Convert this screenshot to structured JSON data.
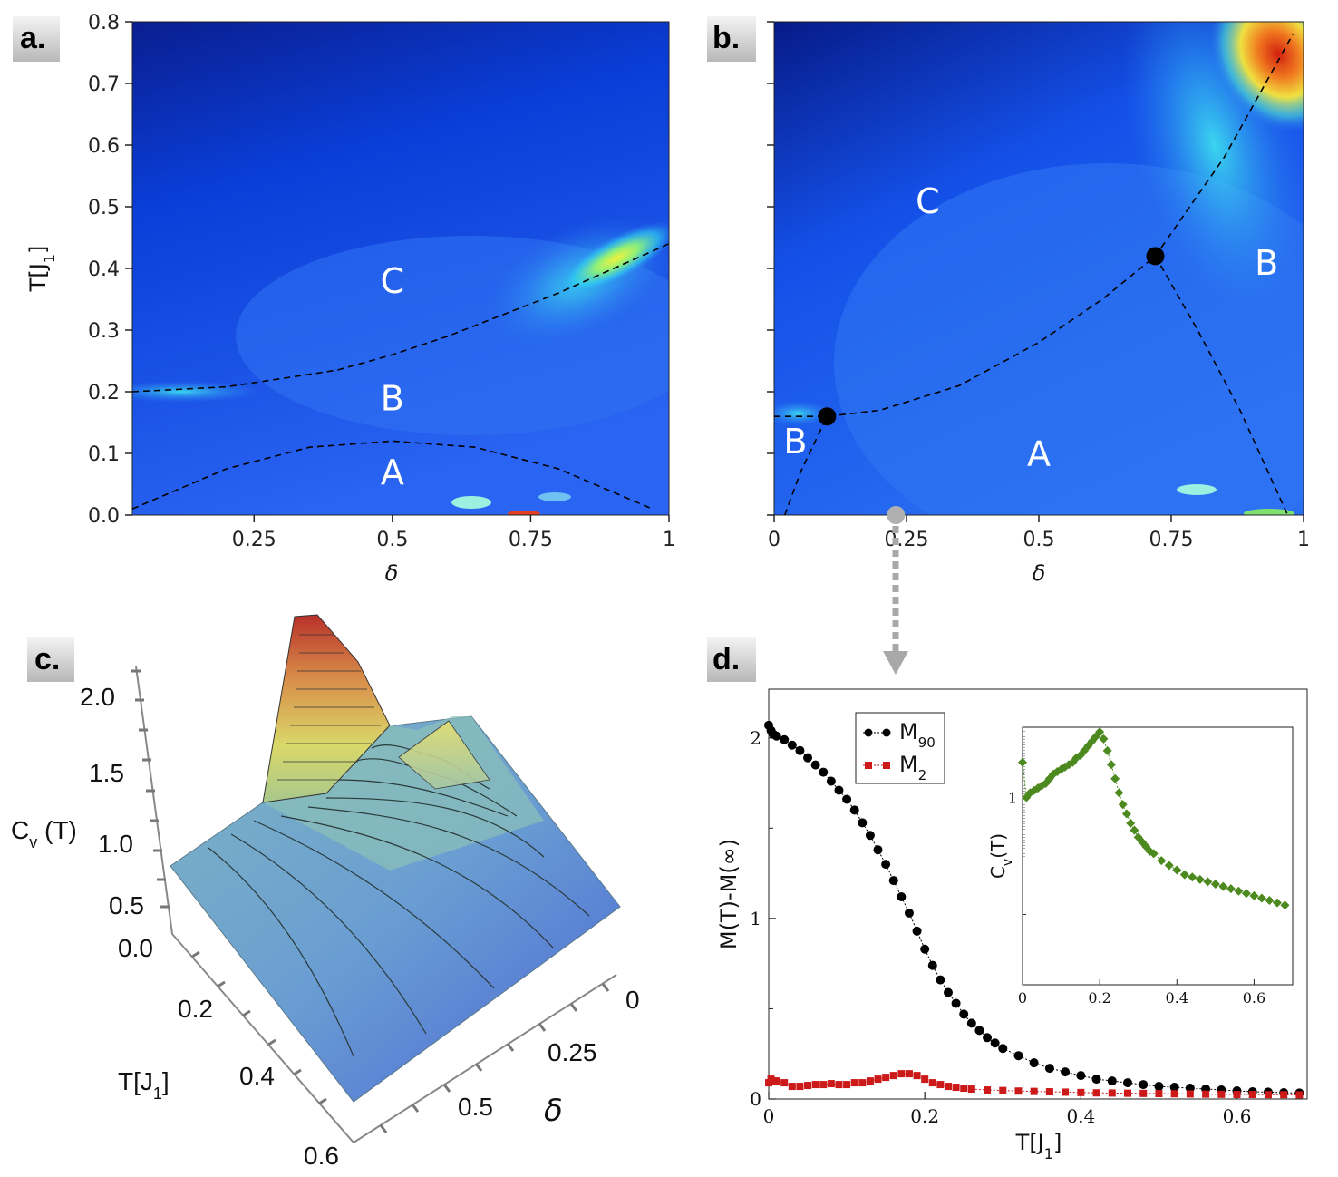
{
  "panels": {
    "a": {
      "label": "a."
    },
    "b": {
      "label": "b."
    },
    "c": {
      "label": "c."
    },
    "d": {
      "label": "d."
    }
  },
  "chart_data": [
    {
      "panel": "a",
      "type": "heatmap",
      "xlabel": "δ",
      "ylabel": "T[J1]",
      "xlim": [
        0.03,
        1.0
      ],
      "ylim": [
        0.0,
        0.8
      ],
      "xticks": [
        0.25,
        0.5,
        0.75,
        1.0
      ],
      "xtick_labels": [
        "0.25",
        "0.5",
        "0.75",
        "1"
      ],
      "yticks": [
        0.0,
        0.1,
        0.2,
        0.3,
        0.4,
        0.5,
        0.6,
        0.7,
        0.8
      ],
      "ytick_labels": [
        "0.0",
        "0.1",
        "0.2",
        "0.3",
        "0.4",
        "0.5",
        "0.6",
        "0.7",
        "0.8"
      ],
      "regions": [
        {
          "label": "C",
          "x": 0.5,
          "y": 0.36
        },
        {
          "label": "B",
          "x": 0.5,
          "y": 0.17
        },
        {
          "label": "A",
          "x": 0.5,
          "y": 0.05
        }
      ],
      "boundaries": [
        {
          "name": "C-B",
          "x": [
            0.03,
            0.2,
            0.4,
            0.5,
            0.6,
            0.8,
            1.0
          ],
          "y": [
            0.2,
            0.208,
            0.235,
            0.26,
            0.29,
            0.36,
            0.44
          ]
        },
        {
          "name": "B-A",
          "x": [
            0.03,
            0.2,
            0.35,
            0.5,
            0.65,
            0.8,
            0.97
          ],
          "y": [
            0.01,
            0.075,
            0.11,
            0.12,
            0.11,
            0.075,
            0.01
          ]
        }
      ]
    },
    {
      "panel": "b",
      "type": "heatmap",
      "xlabel": "δ",
      "ylabel": "",
      "xlim": [
        0.0,
        1.0
      ],
      "ylim": [
        0.0,
        0.8
      ],
      "xticks": [
        0.0,
        0.25,
        0.5,
        0.75,
        1.0
      ],
      "xtick_labels": [
        "0",
        "0.25",
        "0.5",
        "0.75",
        "1"
      ],
      "yticks": [
        0.0,
        0.1,
        0.2,
        0.3,
        0.4,
        0.5,
        0.6,
        0.7,
        0.8
      ],
      "regions": [
        {
          "label": "C",
          "x": 0.29,
          "y": 0.49
        },
        {
          "label": "B",
          "x": 0.93,
          "y": 0.39
        },
        {
          "label": "B",
          "x": 0.04,
          "y": 0.1
        },
        {
          "label": "A",
          "x": 0.5,
          "y": 0.08
        }
      ],
      "boundaries": [
        {
          "name": "upper",
          "x": [
            0.0,
            0.1,
            0.2,
            0.35,
            0.5,
            0.62,
            0.72,
            0.85,
            0.98
          ],
          "y": [
            0.16,
            0.16,
            0.17,
            0.21,
            0.28,
            0.35,
            0.42,
            0.58,
            0.78
          ]
        },
        {
          "name": "left",
          "x": [
            0.02,
            0.05,
            0.1
          ],
          "y": [
            0.0,
            0.07,
            0.16
          ]
        },
        {
          "name": "right",
          "x": [
            0.72,
            0.8,
            0.88,
            0.97
          ],
          "y": [
            0.42,
            0.3,
            0.17,
            0.0
          ]
        }
      ],
      "points": [
        {
          "x": 0.1,
          "y": 0.16
        },
        {
          "x": 0.72,
          "y": 0.42
        }
      ],
      "marker_at": {
        "x": 0.23,
        "y": 0.0
      }
    },
    {
      "panel": "c",
      "type": "surface3d",
      "zlabel": "Cv (T)",
      "ylabel": "T[J1]",
      "xlabel": "δ",
      "zticks": [
        "2.0",
        "1.5",
        "1.0",
        "0.5",
        "0.0"
      ],
      "yticks": [
        "0.2",
        "0.4",
        "0.6"
      ],
      "xticks": [
        "0",
        "0.25",
        "0.5"
      ]
    },
    {
      "panel": "d",
      "type": "scatter",
      "xlabel": "T[J1]",
      "ylabel": "M(T)-M(∞)",
      "xlim": [
        0.0,
        0.69
      ],
      "ylim": [
        0.0,
        2.27
      ],
      "xticks": [
        0,
        0.2,
        0.4,
        0.6
      ],
      "xtick_labels": [
        "0",
        "0.2",
        "0.4",
        "0.6"
      ],
      "yticks": [
        0,
        1,
        2
      ],
      "ytick_labels": [
        "0",
        "1",
        "2"
      ],
      "series": [
        {
          "name": "M90",
          "color": "#000000",
          "marker": "circle",
          "x": [
            0.0,
            0.003,
            0.006,
            0.01,
            0.02,
            0.03,
            0.04,
            0.05,
            0.06,
            0.07,
            0.08,
            0.09,
            0.1,
            0.11,
            0.12,
            0.13,
            0.14,
            0.15,
            0.16,
            0.17,
            0.18,
            0.19,
            0.2,
            0.21,
            0.22,
            0.23,
            0.24,
            0.25,
            0.26,
            0.27,
            0.28,
            0.29,
            0.3,
            0.32,
            0.34,
            0.36,
            0.38,
            0.4,
            0.42,
            0.44,
            0.46,
            0.48,
            0.5,
            0.52,
            0.54,
            0.56,
            0.58,
            0.6,
            0.62,
            0.64,
            0.66,
            0.68
          ],
          "y": [
            2.07,
            2.04,
            2.02,
            2.01,
            1.99,
            1.96,
            1.93,
            1.89,
            1.85,
            1.81,
            1.76,
            1.71,
            1.66,
            1.6,
            1.53,
            1.46,
            1.38,
            1.3,
            1.21,
            1.12,
            1.03,
            0.93,
            0.83,
            0.74,
            0.66,
            0.59,
            0.53,
            0.47,
            0.42,
            0.38,
            0.34,
            0.31,
            0.28,
            0.24,
            0.2,
            0.17,
            0.15,
            0.13,
            0.11,
            0.1,
            0.09,
            0.08,
            0.07,
            0.065,
            0.06,
            0.055,
            0.05,
            0.045,
            0.04,
            0.038,
            0.035,
            0.033
          ]
        },
        {
          "name": "M2",
          "color": "#cc1a1a",
          "marker": "square",
          "x": [
            0.0,
            0.003,
            0.006,
            0.01,
            0.02,
            0.03,
            0.04,
            0.05,
            0.06,
            0.07,
            0.08,
            0.09,
            0.1,
            0.11,
            0.12,
            0.13,
            0.14,
            0.15,
            0.16,
            0.17,
            0.18,
            0.19,
            0.2,
            0.21,
            0.22,
            0.23,
            0.24,
            0.25,
            0.26,
            0.28,
            0.3,
            0.32,
            0.34,
            0.36,
            0.38,
            0.4,
            0.42,
            0.44,
            0.46,
            0.48,
            0.5,
            0.52,
            0.54,
            0.56,
            0.58,
            0.6,
            0.62,
            0.64,
            0.66,
            0.68
          ],
          "y": [
            0.09,
            0.11,
            0.1,
            0.1,
            0.09,
            0.07,
            0.07,
            0.075,
            0.08,
            0.08,
            0.085,
            0.08,
            0.08,
            0.09,
            0.09,
            0.1,
            0.11,
            0.12,
            0.13,
            0.14,
            0.14,
            0.13,
            0.11,
            0.09,
            0.08,
            0.07,
            0.065,
            0.06,
            0.055,
            0.05,
            0.047,
            0.044,
            0.042,
            0.04,
            0.038,
            0.036,
            0.034,
            0.033,
            0.032,
            0.031,
            0.03,
            0.029,
            0.028,
            0.027,
            0.026,
            0.025,
            0.025,
            0.024,
            0.024,
            0.023
          ]
        }
      ],
      "legend": {
        "position": "top-left",
        "entries": [
          "M90",
          "M2"
        ]
      },
      "inset": {
        "type": "scatter",
        "ylabel": "Cv(T)",
        "xlim": [
          0.0,
          0.7
        ],
        "ylim": [
          0.2,
          1.3
        ],
        "xticks": [
          0,
          0.2,
          0.4,
          0.6
        ],
        "xtick_labels": [
          "0",
          "0.2",
          "0.4",
          "0.6"
        ],
        "yticks": [
          1
        ],
        "ytick_labels": [
          "1"
        ],
        "series": [
          {
            "name": "Cv",
            "color": "#4c8a1f",
            "marker": "diamond",
            "x": [
              0.0,
              0.01,
              0.02,
              0.03,
              0.04,
              0.05,
              0.06,
              0.07,
              0.08,
              0.09,
              0.1,
              0.11,
              0.12,
              0.13,
              0.14,
              0.15,
              0.16,
              0.17,
              0.18,
              0.19,
              0.2,
              0.21,
              0.22,
              0.23,
              0.24,
              0.25,
              0.26,
              0.27,
              0.28,
              0.29,
              0.3,
              0.31,
              0.32,
              0.33,
              0.34,
              0.36,
              0.38,
              0.4,
              0.42,
              0.44,
              0.46,
              0.48,
              0.5,
              0.52,
              0.54,
              0.56,
              0.58,
              0.6,
              0.62,
              0.64,
              0.66,
              0.68
            ],
            "y": [
              1.15,
              1.0,
              1.02,
              1.03,
              1.04,
              1.05,
              1.06,
              1.08,
              1.1,
              1.11,
              1.12,
              1.13,
              1.14,
              1.15,
              1.17,
              1.18,
              1.2,
              1.22,
              1.24,
              1.26,
              1.28,
              1.25,
              1.2,
              1.14,
              1.08,
              1.02,
              0.97,
              0.93,
              0.89,
              0.86,
              0.83,
              0.81,
              0.79,
              0.77,
              0.76,
              0.73,
              0.71,
              0.69,
              0.67,
              0.66,
              0.65,
              0.64,
              0.63,
              0.62,
              0.61,
              0.6,
              0.59,
              0.58,
              0.57,
              0.56,
              0.55,
              0.54
            ]
          }
        ]
      }
    }
  ]
}
